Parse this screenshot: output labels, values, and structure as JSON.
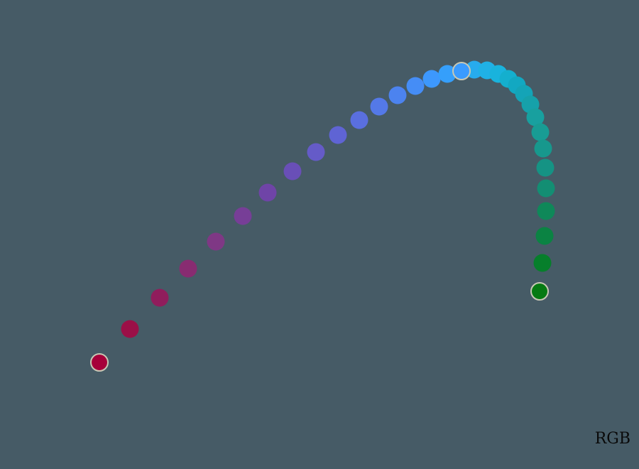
{
  "color_space_label": "RGB",
  "gradient": {
    "start_color": "#a6003a",
    "mid_color": "#3a9bff",
    "end_color": "#067a12",
    "stops": [
      "#a6003a",
      "#9a1048",
      "#8e2060",
      "#853078",
      "#7c3d8c",
      "#723fa0",
      "#6b4bb0",
      "#6658c4",
      "#6062d2",
      "#5a6ede",
      "#5479e8",
      "#4b84f0",
      "#4390f8",
      "#3a9bff",
      "#32a2f8",
      "#2aa8f0",
      "#22b0e8",
      "#1ab4e0",
      "#14b0d0",
      "#12a8c2",
      "#14a4b6",
      "#16a0a8",
      "#18a09c",
      "#189a90",
      "#16968a",
      "#14907e",
      "#108a60",
      "#0c8448",
      "#06802e",
      "#067a12"
    ]
  }
}
